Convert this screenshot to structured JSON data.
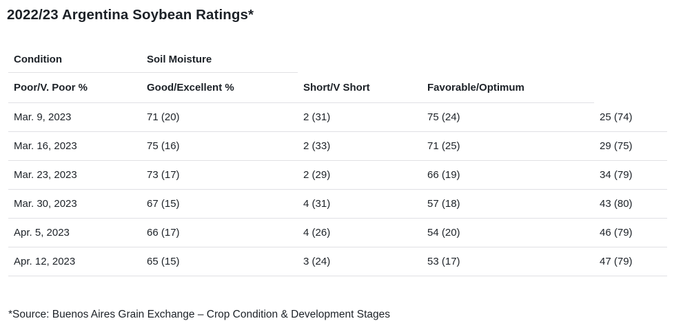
{
  "chart_data": {
    "type": "table",
    "title": "2022/23 Argentina Soybean Ratings*",
    "group_headers": [
      "Condition",
      "Soil Moisture"
    ],
    "columns": [
      "Poor/V. Poor %",
      "Good/Excellent %",
      "Short/V Short",
      "Favorable/Optimum"
    ],
    "rows": [
      [
        "Mar. 9, 2023",
        "71 (20)",
        "2 (31)",
        "75 (24)",
        "25 (74)"
      ],
      [
        "Mar. 16, 2023",
        "75 (16)",
        "2 (33)",
        "71 (25)",
        "29 (75)"
      ],
      [
        "Mar. 23, 2023",
        "73 (17)",
        "2 (29)",
        "66 (19)",
        "34 (79)"
      ],
      [
        "Mar. 30, 2023",
        "67 (15)",
        "4 (31)",
        "57 (18)",
        "43 (80)"
      ],
      [
        "Apr. 5, 2023",
        "66 (17)",
        "4 (26)",
        "54 (20)",
        "46 (79)"
      ],
      [
        "Apr. 12, 2023",
        "65 (15)",
        "3 (24)",
        "53 (17)",
        "47 (79)"
      ]
    ],
    "source": "*Source: Buenos Aires Grain Exchange – Crop Condition & Development Stages",
    "layout": {
      "grid": "horizontal-row-dividers-only",
      "legend": "none",
      "header_rows": 2,
      "unheadered_last_column": true
    }
  },
  "colors": {
    "text": "#1c2127",
    "divider": "#e0e0e4",
    "background": "#ffffff"
  }
}
